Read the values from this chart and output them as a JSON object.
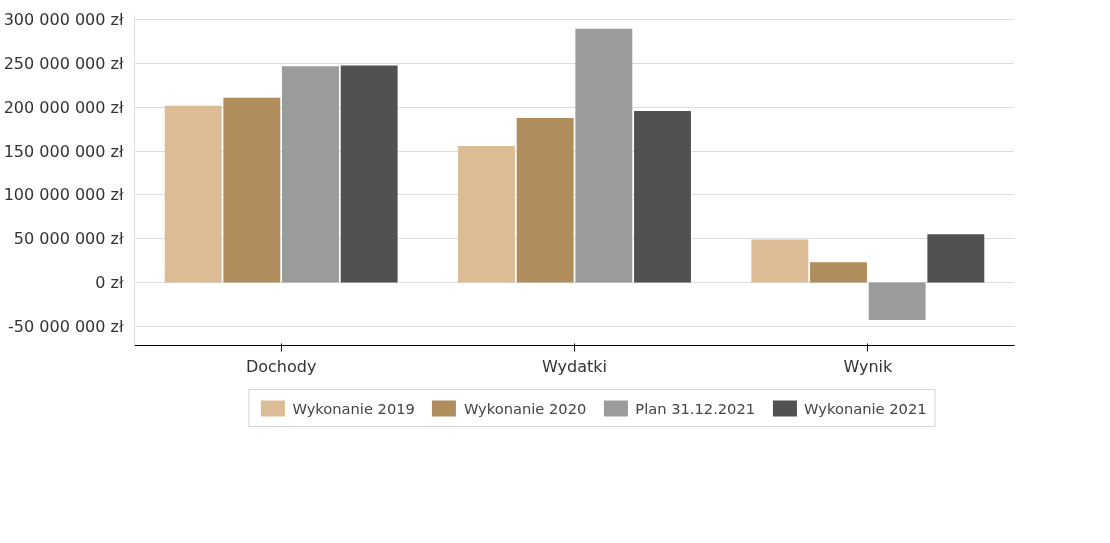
{
  "chart_data": {
    "type": "bar",
    "categories": [
      "Dochody",
      "Wydatki",
      "Wynik"
    ],
    "series": [
      {
        "name": "Wykonanie 2019",
        "color": "#dcbc94",
        "values": [
          202000000,
          156000000,
          49000000
        ]
      },
      {
        "name": "Wykonanie 2020",
        "color": "#b08d5c",
        "values": [
          211000000,
          188000000,
          23000000
        ]
      },
      {
        "name": "Plan 31.12.2021",
        "color": "#9a9c9c",
        "values": [
          247000000,
          290000000,
          -43000000
        ]
      },
      {
        "name": "Wykonanie 2021",
        "color": "#4f5152",
        "values": [
          248000000,
          196000000,
          55000000
        ]
      }
    ],
    "ylim": [
      -72000000,
      305000000
    ],
    "yticks": [
      {
        "value": -50000000,
        "label": "-50 000 000 zł"
      },
      {
        "value": 0,
        "label": "0 zł"
      },
      {
        "value": 50000000,
        "label": "50 000 000 zł"
      },
      {
        "value": 100000000,
        "label": "100 000 000 zł"
      },
      {
        "value": 150000000,
        "label": "150 000 000 zł"
      },
      {
        "value": 200000000,
        "label": "200 000 000 zł"
      },
      {
        "value": 250000000,
        "label": "250 000 000 zł"
      },
      {
        "value": 300000000,
        "label": "300 000 000 zł"
      }
    ],
    "grid": "y",
    "legend": "bottom"
  }
}
